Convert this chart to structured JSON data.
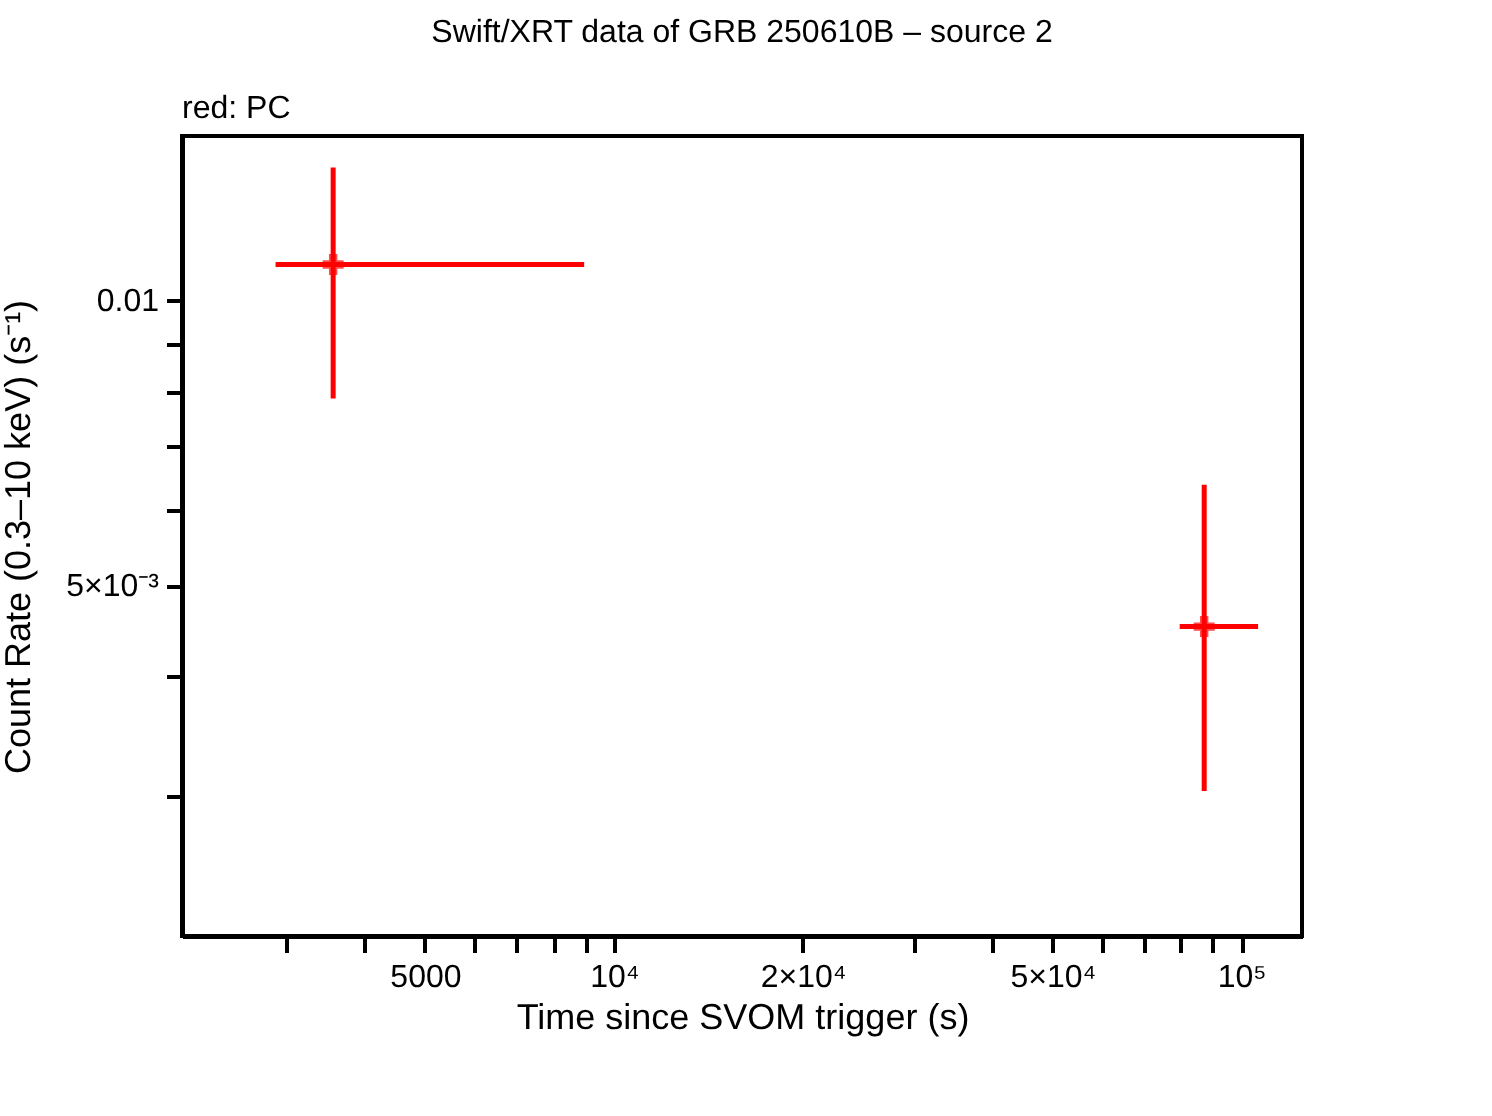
{
  "chart_data": {
    "type": "scatter",
    "title": "Swift/XRT data of GRB 250610B – source 2",
    "xlabel": "Time since SVOM trigger (s)",
    "ylabel": "Count Rate (0.3–10 keV) (s⁻¹)",
    "annotations": [
      "red: PC"
    ],
    "x": [
      3570,
      87300
    ],
    "series": [
      {
        "color": "#ff0000",
        "values": [
          0.0109,
          0.00452
        ],
        "errors": [
          [
            0.00787,
            0.0138
          ],
          [
            0.00303,
            0.00638
          ]
        ],
        "xerrors": [
          [
            2890,
            8970
          ],
          [
            79800,
            106400
          ]
        ]
      }
    ],
    "marker": "cross",
    "log": "xy",
    "grid": false,
    "legend": false,
    "xlim": [
      2050,
      125000
    ],
    "ylim": [
      0.00213,
      0.0149
    ],
    "xticks": [
      {
        "value": 3000,
        "label": null
      },
      {
        "value": 4000,
        "label": null
      },
      5000,
      {
        "value": 6000,
        "label": null
      },
      {
        "value": 7000,
        "label": null
      },
      {
        "value": 8000,
        "label": null
      },
      {
        "value": 9000,
        "label": null
      },
      {
        "value": 10000,
        "label": "10⁴"
      },
      {
        "value": 20000,
        "label": "2×10⁴"
      },
      {
        "value": 30000,
        "label": null
      },
      {
        "value": 40000,
        "label": null
      },
      {
        "value": 50000,
        "label": "5×10⁴"
      },
      {
        "value": 60000,
        "label": null
      },
      {
        "value": 70000,
        "label": null
      },
      {
        "value": 80000,
        "label": null
      },
      {
        "value": 90000,
        "label": null
      },
      {
        "value": 100000,
        "label": "10⁵"
      }
    ],
    "yticks": [
      {
        "value": 0.003,
        "label": null
      },
      {
        "value": 0.004,
        "label": null
      },
      {
        "value": 0.005,
        "label": "5×10⁻³"
      },
      {
        "value": 0.006,
        "label": null
      },
      {
        "value": 0.007,
        "label": null
      },
      {
        "value": 0.008,
        "label": null
      },
      {
        "value": 0.009,
        "label": null
      },
      0.01
    ]
  }
}
